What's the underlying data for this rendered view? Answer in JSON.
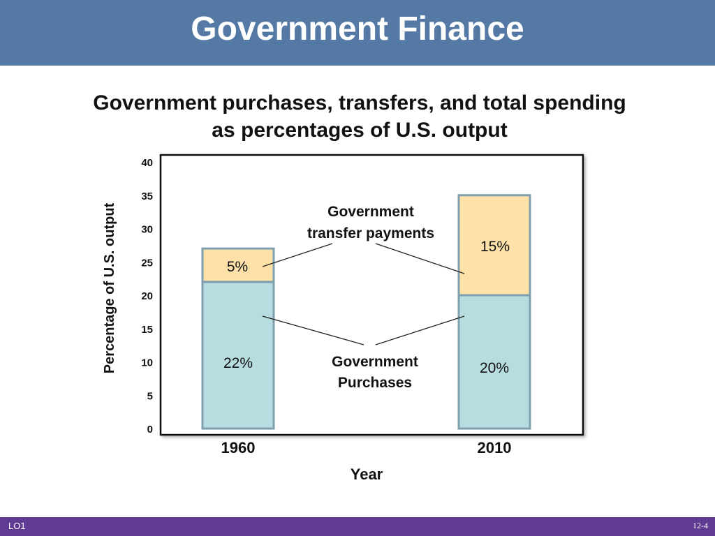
{
  "slide": {
    "header_title": "Government Finance",
    "subtitle_line1": "Government purchases, transfers, and total spending",
    "subtitle_line2": "as percentages of U.S. output",
    "footer_left": "LO1",
    "footer_right": "12-4"
  },
  "colors": {
    "header_bg": "#5479a5",
    "footer_bg": "#5f3b94",
    "purchases": "#b7dde0",
    "transfers": "#fde1a9",
    "bar_edge": "#7f9eae"
  },
  "chart_data": {
    "type": "bar",
    "stacked": true,
    "categories": [
      "1960",
      "2010"
    ],
    "series": [
      {
        "name": "Government Purchases",
        "values": [
          22,
          20
        ],
        "labels": [
          "22%",
          "20%"
        ]
      },
      {
        "name": "Government transfer payments",
        "values": [
          5,
          15
        ],
        "labels": [
          "5%",
          "15%"
        ]
      }
    ],
    "annotations": {
      "transfers_line1": "Government",
      "transfers_line2": "transfer payments",
      "purchases_line1": "Government",
      "purchases_line2": "Purchases"
    },
    "xlabel": "Year",
    "ylabel": "Percentage of U.S. output",
    "ylim": [
      0,
      40
    ],
    "yticks": [
      0,
      5,
      10,
      15,
      20,
      25,
      30,
      35,
      40
    ],
    "grid": false,
    "legend": "none"
  }
}
